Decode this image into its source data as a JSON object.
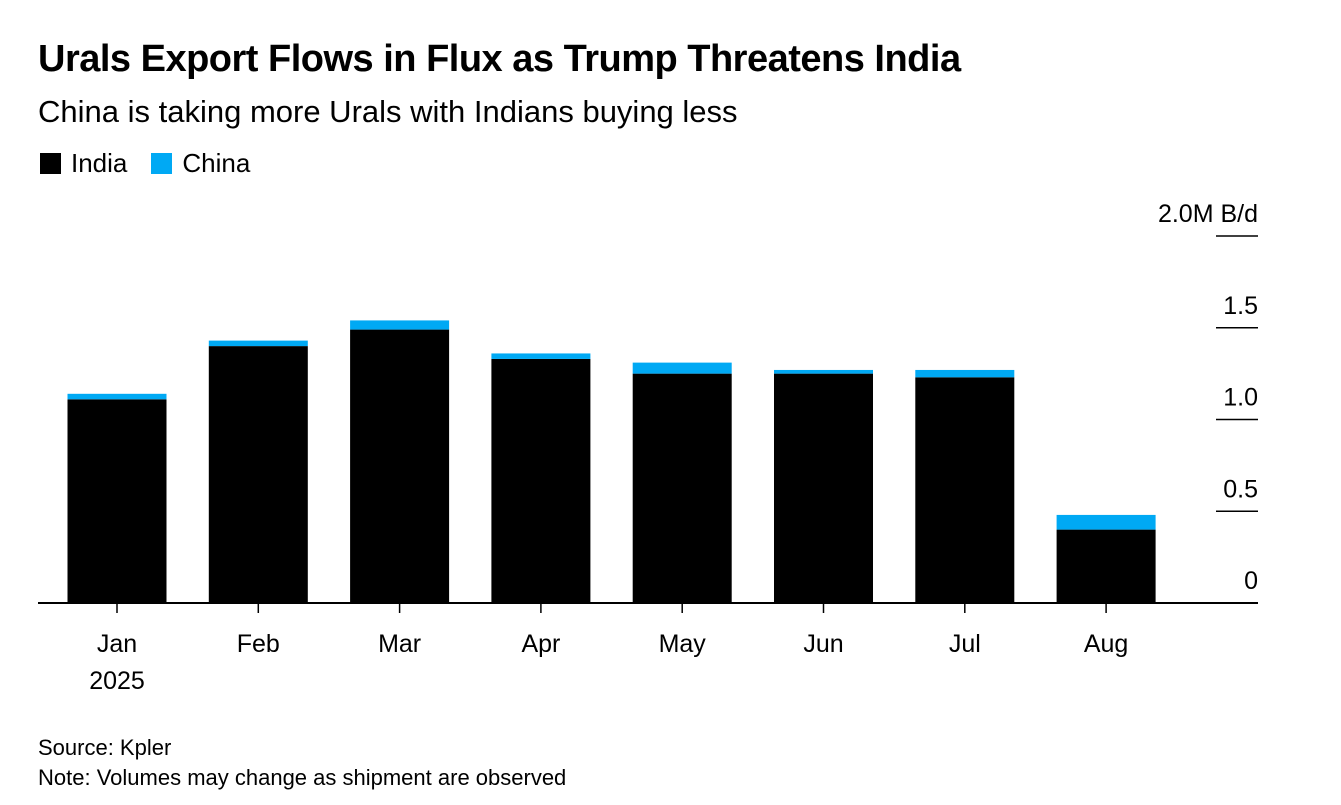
{
  "header": {
    "title": "Urals Export Flows in Flux as Trump Threatens India",
    "subtitle": "China is taking more Urals with Indians buying less"
  },
  "footer": {
    "source": "Source: Kpler",
    "note": "Note: Volumes may change as shipment are observed"
  },
  "colors": {
    "india": "#000000",
    "china": "#00a9f4"
  },
  "chart_data": {
    "type": "bar",
    "stacked": true,
    "categories": [
      "Jan",
      "Feb",
      "Mar",
      "Apr",
      "May",
      "Jun",
      "Jul",
      "Aug"
    ],
    "category_sublabels": [
      "2025",
      "",
      "",
      "",
      "",
      "",
      "",
      ""
    ],
    "series": [
      {
        "name": "India",
        "color": "#000000",
        "values": [
          1.11,
          1.4,
          1.49,
          1.33,
          1.25,
          1.25,
          1.23,
          0.4
        ]
      },
      {
        "name": "China",
        "color": "#00a9f4",
        "values": [
          0.03,
          0.03,
          0.05,
          0.03,
          0.06,
          0.02,
          0.04,
          0.08
        ]
      }
    ],
    "y_ticks": [
      0,
      0.5,
      1.0,
      1.5,
      2.0
    ],
    "y_tick_labels": [
      "0",
      "0.5",
      "1.0",
      "1.5",
      "2.0M B/d"
    ],
    "ylim": [
      0,
      2.0
    ],
    "axis_position": "right",
    "legend_position": "top-left"
  }
}
